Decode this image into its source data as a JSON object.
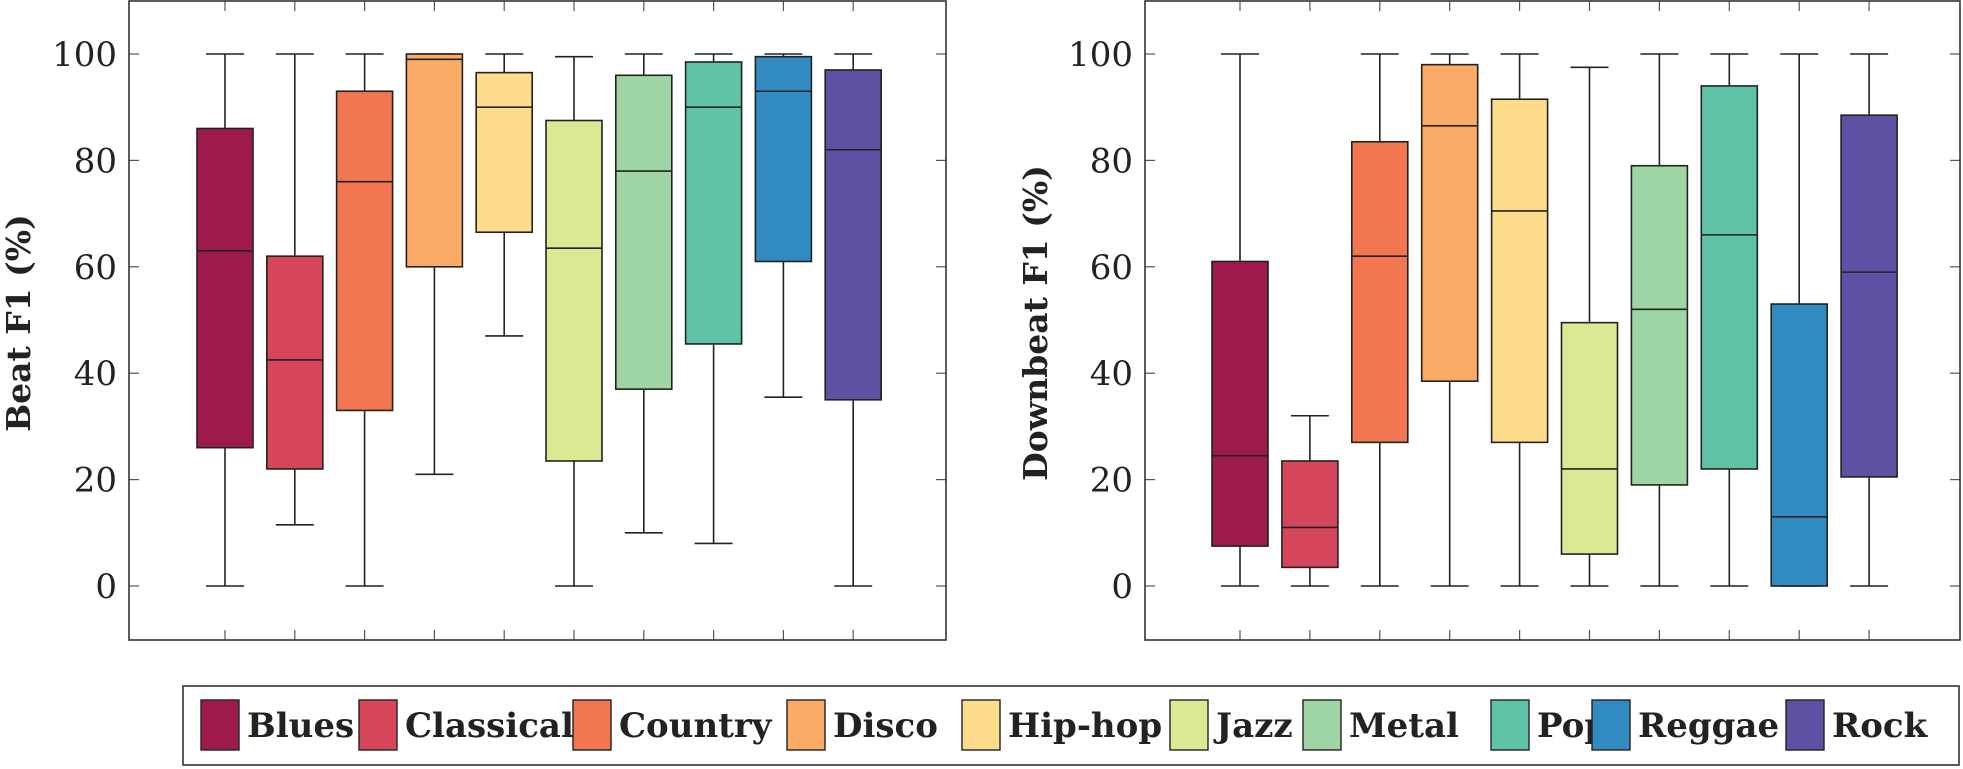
{
  "chart_data": [
    {
      "type": "box",
      "ylabel": "Beat F1 (%)",
      "ylim": [
        -10,
        110
      ],
      "yticks": [
        0,
        20,
        40,
        60,
        80,
        100
      ],
      "grid": "y-ticks-only",
      "categories": [
        "Blues",
        "Classical",
        "Country",
        "Disco",
        "Hip-hop",
        "Jazz",
        "Metal",
        "Pop",
        "Reggae",
        "Rock"
      ],
      "boxes": [
        {
          "category": "Blues",
          "min": 0,
          "q1": 26,
          "median": 63,
          "q3": 86,
          "max": 100
        },
        {
          "category": "Classical",
          "min": 11.5,
          "q1": 22,
          "median": 42.5,
          "q3": 62,
          "max": 100
        },
        {
          "category": "Country",
          "min": 0,
          "q1": 33,
          "median": 76,
          "q3": 93,
          "max": 100
        },
        {
          "category": "Disco",
          "min": 21,
          "q1": 60,
          "median": 99,
          "q3": 100,
          "max": 100
        },
        {
          "category": "Hip-hop",
          "min": 47,
          "q1": 66.5,
          "median": 90,
          "q3": 96.5,
          "max": 100
        },
        {
          "category": "Jazz",
          "min": 0,
          "q1": 23.5,
          "median": 63.5,
          "q3": 87.5,
          "max": 99.5
        },
        {
          "category": "Metal",
          "min": 10,
          "q1": 37,
          "median": 78,
          "q3": 96,
          "max": 100
        },
        {
          "category": "Pop",
          "min": 8,
          "q1": 45.5,
          "median": 90,
          "q3": 98.5,
          "max": 100
        },
        {
          "category": "Reggae",
          "min": 35.5,
          "q1": 61,
          "median": 93,
          "q3": 99.5,
          "max": 100
        },
        {
          "category": "Rock",
          "min": 0,
          "q1": 35,
          "median": 82,
          "q3": 97,
          "max": 100
        }
      ]
    },
    {
      "type": "box",
      "ylabel": "Downbeat F1 (%)",
      "ylim": [
        -10,
        110
      ],
      "yticks": [
        0,
        20,
        40,
        60,
        80,
        100
      ],
      "grid": "y-ticks-only",
      "categories": [
        "Blues",
        "Classical",
        "Country",
        "Disco",
        "Hip-hop",
        "Jazz",
        "Metal",
        "Pop",
        "Reggae",
        "Rock"
      ],
      "boxes": [
        {
          "category": "Blues",
          "min": 0,
          "q1": 7.5,
          "median": 24.5,
          "q3": 61,
          "max": 100
        },
        {
          "category": "Classical",
          "min": 0,
          "q1": 3.5,
          "median": 11,
          "q3": 23.5,
          "max": 32
        },
        {
          "category": "Country",
          "min": 0,
          "q1": 27,
          "median": 62,
          "q3": 83.5,
          "max": 100
        },
        {
          "category": "Disco",
          "min": 0,
          "q1": 38.5,
          "median": 86.5,
          "q3": 98,
          "max": 100
        },
        {
          "category": "Hip-hop",
          "min": 0,
          "q1": 27,
          "median": 70.5,
          "q3": 91.5,
          "max": 100
        },
        {
          "category": "Jazz",
          "min": 0,
          "q1": 6,
          "median": 22,
          "q3": 49.5,
          "max": 97.5
        },
        {
          "category": "Metal",
          "min": 0,
          "q1": 19,
          "median": 52,
          "q3": 79,
          "max": 100
        },
        {
          "category": "Pop",
          "min": 0,
          "q1": 22,
          "median": 66,
          "q3": 94,
          "max": 100
        },
        {
          "category": "Reggae",
          "min": 0,
          "q1": 0,
          "median": 13,
          "q3": 53,
          "max": 100
        },
        {
          "category": "Rock",
          "min": 0,
          "q1": 20.5,
          "median": 59,
          "q3": 88.5,
          "max": 100
        }
      ]
    }
  ],
  "legend": {
    "placement": "bottom",
    "items": [
      {
        "label": "Blues",
        "color": "#9e1a4c"
      },
      {
        "label": "Classical",
        "color": "#d5465a"
      },
      {
        "label": "Country",
        "color": "#f27650"
      },
      {
        "label": "Disco",
        "color": "#fbab66"
      },
      {
        "label": "Hip-hop",
        "color": "#fddc8b"
      },
      {
        "label": "Jazz",
        "color": "#dde894"
      },
      {
        "label": "Metal",
        "color": "#9fd5a4"
      },
      {
        "label": "Pop",
        "color": "#5fc3a7"
      },
      {
        "label": "Reggae",
        "color": "#328bc0"
      },
      {
        "label": "Rock",
        "color": "#5e50a2"
      }
    ]
  }
}
